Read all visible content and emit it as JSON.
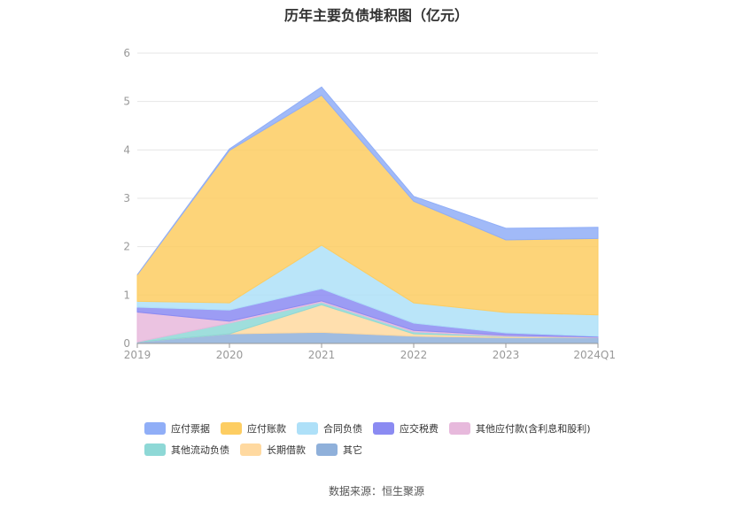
{
  "chart_data": {
    "type": "area",
    "stacked": true,
    "title": "历年主要负债堆积图（亿元）",
    "source": "数据来源：恒生聚源",
    "categories": [
      "2019",
      "2020",
      "2021",
      "2022",
      "2023",
      "2024Q1"
    ],
    "y_ticks": [
      "0",
      "1",
      "2",
      "3",
      "4",
      "5",
      "6"
    ],
    "ylim": [
      0,
      6
    ],
    "grid": true,
    "legend_position": "bottom",
    "series": [
      {
        "name": "其它",
        "color": "#8fb0da",
        "values": [
          0.03,
          0.2,
          0.23,
          0.15,
          0.12,
          0.12
        ]
      },
      {
        "name": "长期借款",
        "color": "#ffd9a0",
        "values": [
          0,
          0,
          0.57,
          0.05,
          0.02,
          0
        ]
      },
      {
        "name": "其他流动负债",
        "color": "#8ed8d6",
        "values": [
          0,
          0.22,
          0.05,
          0.04,
          0.01,
          0
        ]
      },
      {
        "name": "其他应付款(含利息和股利)",
        "color": "#e7b9dc",
        "values": [
          0.62,
          0.04,
          0.03,
          0.03,
          0.02,
          0.01
        ]
      },
      {
        "name": "应交税费",
        "color": "#8b8bf2",
        "values": [
          0.1,
          0.23,
          0.25,
          0.15,
          0.05,
          0.02
        ]
      },
      {
        "name": "合同负债",
        "color": "#aee0f8",
        "values": [
          0.12,
          0.15,
          0.9,
          0.42,
          0.42,
          0.44
        ]
      },
      {
        "name": "应付账款",
        "color": "#fdcd62",
        "values": [
          0.55,
          3.15,
          3.1,
          2.1,
          1.5,
          1.58
        ]
      },
      {
        "name": "应付票据",
        "color": "#90aef7",
        "values": [
          0,
          0.03,
          0.17,
          0.1,
          0.24,
          0.23
        ]
      }
    ],
    "legend_rows": [
      [
        "应付票据",
        "应付账款",
        "合同负债",
        "应交税费",
        "其他应付款(含利息和股利)"
      ],
      [
        "其他流动负债",
        "长期借款",
        "其它"
      ]
    ]
  }
}
